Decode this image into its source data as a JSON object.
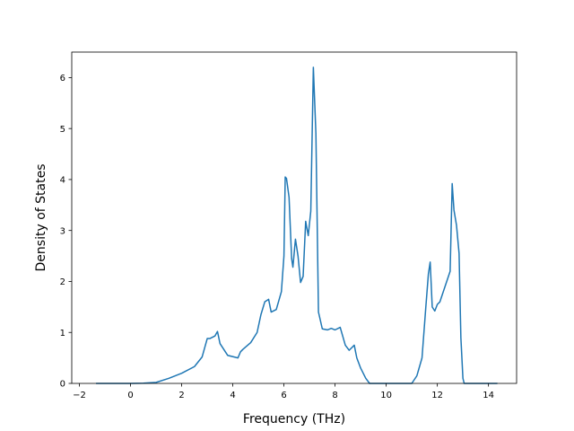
{
  "chart_data": {
    "type": "line",
    "title": "",
    "xlabel": "Frequency (THz)",
    "ylabel": "Density of States",
    "xlim": [
      -2.3,
      15.1
    ],
    "ylim": [
      0,
      6.5
    ],
    "xticks": [
      -2,
      0,
      2,
      4,
      6,
      8,
      10,
      12,
      14
    ],
    "xtick_labels": [
      "−2",
      "0",
      "2",
      "4",
      "6",
      "8",
      "10",
      "12",
      "14"
    ],
    "yticks": [
      0,
      1,
      2,
      3,
      4,
      5,
      6
    ],
    "ytick_labels": [
      "0",
      "1",
      "2",
      "3",
      "4",
      "5",
      "6"
    ],
    "grid": false,
    "legend": "none",
    "series": [
      {
        "color": "#1f77b4",
        "x": [
          -1.35,
          0.0,
          0.5,
          1.0,
          1.5,
          2.0,
          2.5,
          2.8,
          3.0,
          3.1,
          3.3,
          3.4,
          3.5,
          3.8,
          4.2,
          4.3,
          4.4,
          4.7,
          4.95,
          5.1,
          5.25,
          5.4,
          5.5,
          5.7,
          5.9,
          6.0,
          6.05,
          6.1,
          6.2,
          6.3,
          6.35,
          6.45,
          6.55,
          6.65,
          6.75,
          6.85,
          6.95,
          7.05,
          7.15,
          7.25,
          7.35,
          7.5,
          7.7,
          7.85,
          8.0,
          8.2,
          8.4,
          8.55,
          8.75,
          8.85,
          9.0,
          9.2,
          9.35,
          9.5,
          10.0,
          10.5,
          11.0,
          11.2,
          11.4,
          11.55,
          11.65,
          11.72,
          11.8,
          11.9,
          12.0,
          12.1,
          12.3,
          12.5,
          12.58,
          12.65,
          12.75,
          12.85,
          12.92,
          13.0,
          13.05,
          13.5,
          14.0,
          14.35
        ],
        "values": [
          0.0,
          0.0,
          0.005,
          0.02,
          0.1,
          0.2,
          0.33,
          0.52,
          0.88,
          0.88,
          0.93,
          1.02,
          0.78,
          0.55,
          0.5,
          0.62,
          0.67,
          0.8,
          1.0,
          1.35,
          1.6,
          1.65,
          1.4,
          1.45,
          1.8,
          2.5,
          4.05,
          4.02,
          3.65,
          2.45,
          2.28,
          2.83,
          2.5,
          1.98,
          2.1,
          3.18,
          2.9,
          3.38,
          6.2,
          4.9,
          1.4,
          1.07,
          1.05,
          1.08,
          1.05,
          1.1,
          0.75,
          0.65,
          0.75,
          0.5,
          0.3,
          0.1,
          0.0,
          0.0,
          0.0,
          0.0,
          0.0,
          0.15,
          0.5,
          1.5,
          2.15,
          2.38,
          1.5,
          1.42,
          1.55,
          1.6,
          1.9,
          2.2,
          3.92,
          3.4,
          3.1,
          2.55,
          0.9,
          0.1,
          0.0,
          0.0,
          0.0,
          0.0
        ]
      }
    ]
  }
}
